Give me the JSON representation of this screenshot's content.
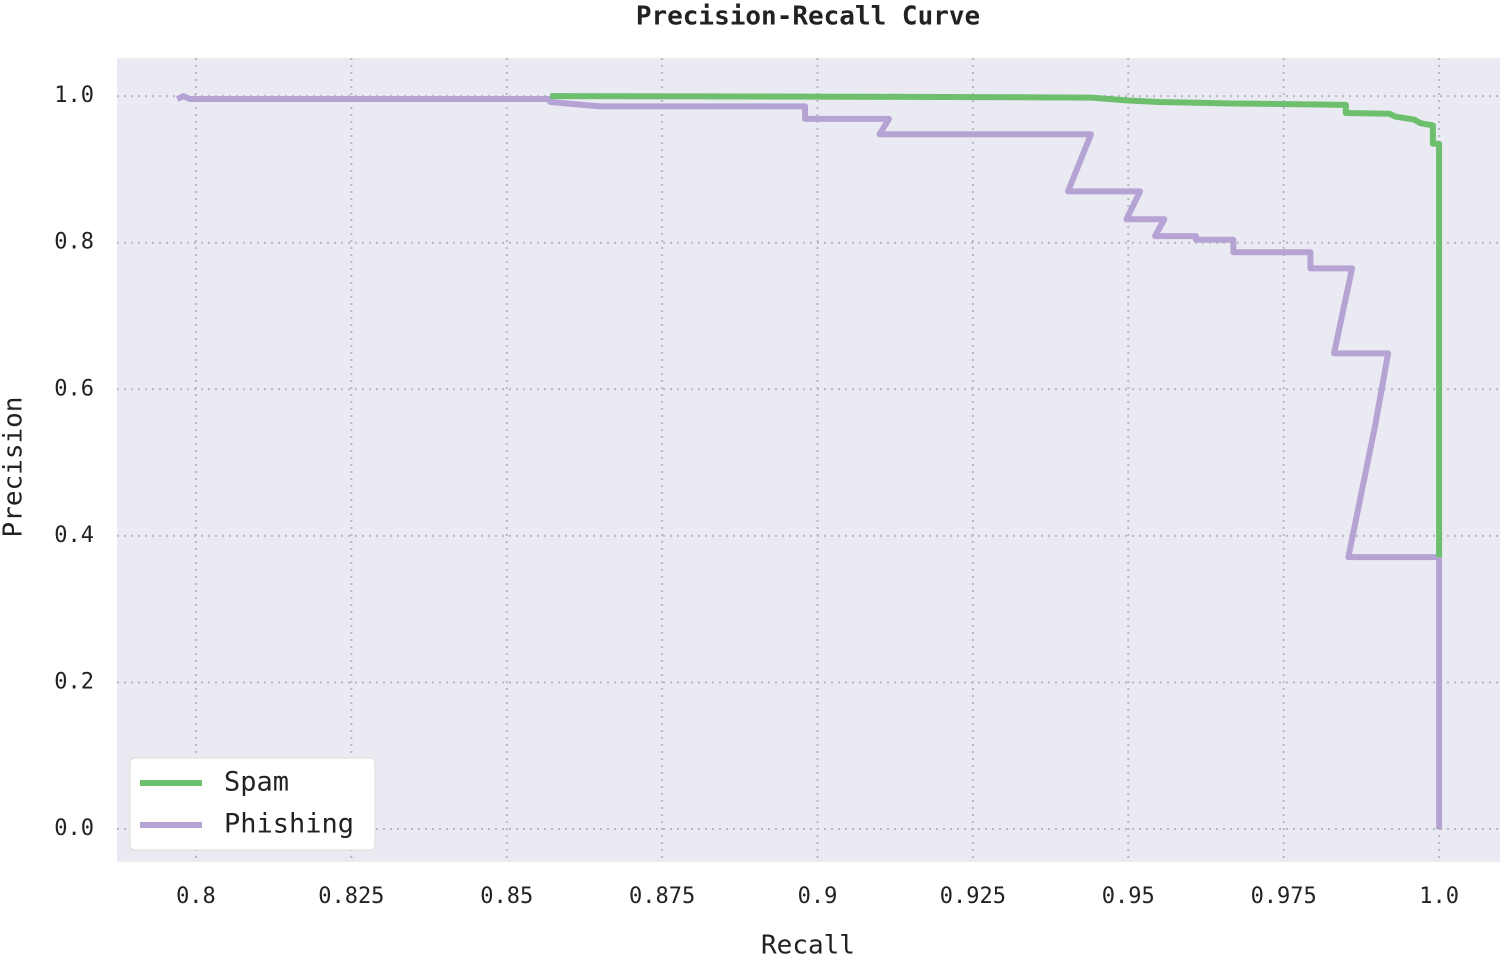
{
  "chart_data": {
    "type": "line",
    "title": "Precision-Recall Curve",
    "xlabel": "Recall",
    "ylabel": "Precision",
    "xlim": [
      0.7873,
      1.0098
    ],
    "ylim": [
      -0.045,
      1.052
    ],
    "xticks": [
      0.8,
      0.825,
      0.85,
      0.875,
      0.9,
      0.925,
      0.95,
      0.975,
      {
        "value": 1,
        "label": "1.0"
      }
    ],
    "yticks": [
      {
        "value": 0,
        "label": "0.0"
      },
      0.2,
      0.4,
      0.6,
      0.8,
      {
        "value": 1,
        "label": "1.0"
      }
    ],
    "grid": true,
    "legend": "lower left",
    "series": [
      {
        "name": "Spam",
        "color": "#6dbf6d",
        "x": [
          0.857,
          0.914,
          0.944,
          0.95,
          0.955,
          0.967,
          0.985,
          0.985,
          0.992,
          0.993,
          0.996,
          0.997,
          0.999,
          0.999,
          1.0,
          1.0
        ],
        "values": [
          1.0,
          0.999,
          0.998,
          0.994,
          0.992,
          0.99,
          0.988,
          0.977,
          0.976,
          0.972,
          0.968,
          0.963,
          0.96,
          0.935,
          0.935,
          0.371
        ]
      },
      {
        "name": "Phishing",
        "color": "#b5a3d4",
        "x": [
          0.797,
          0.798,
          0.799,
          0.857,
          0.857,
          0.865,
          0.898,
          0.898,
          0.9115,
          0.91,
          0.944,
          0.9403,
          0.9519,
          0.9497,
          0.9558,
          0.9543,
          0.9609,
          0.9609,
          0.9669,
          0.9669,
          0.9793,
          0.9793,
          0.986,
          0.9831,
          0.9918,
          0.9897,
          0.9873,
          0.9854,
          1.0,
          1.0
        ],
        "values": [
          0.996,
          1.0,
          0.996,
          0.996,
          0.992,
          0.986,
          0.986,
          0.969,
          0.969,
          0.948,
          0.948,
          0.87,
          0.87,
          0.832,
          0.832,
          0.809,
          0.809,
          0.804,
          0.804,
          0.787,
          0.787,
          0.765,
          0.765,
          0.649,
          0.649,
          0.55,
          0.45,
          0.371,
          0.371,
          0.0
        ]
      }
    ]
  }
}
